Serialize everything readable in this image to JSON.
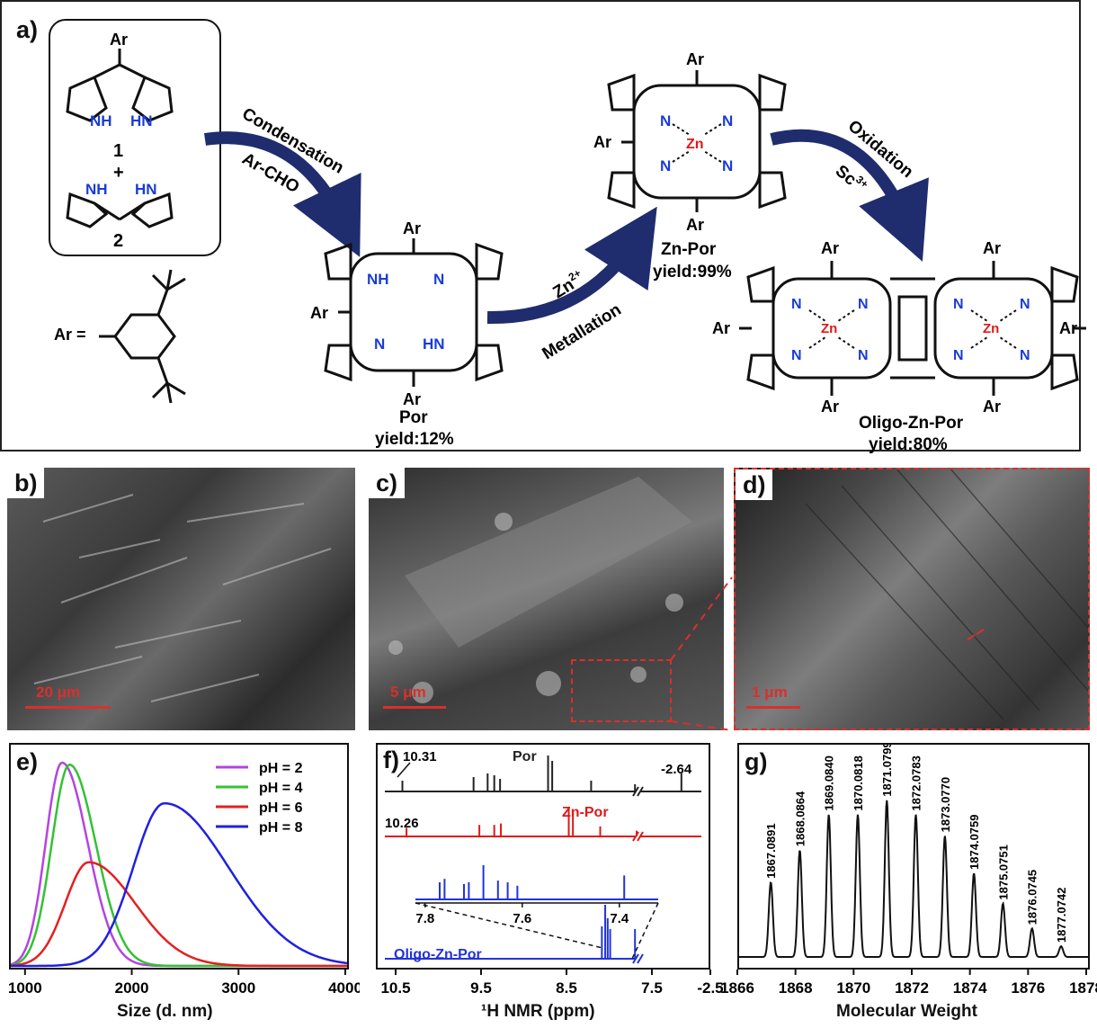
{
  "panels": {
    "a": "a)",
    "b": "b)",
    "c": "c)",
    "d": "d)",
    "e": "e)",
    "f": "f)",
    "g": "g)"
  },
  "scheme": {
    "ar": "Ar",
    "ar_def": "Ar =",
    "compound1": "1",
    "plus": "+",
    "compound2": "2",
    "nh": "NH",
    "hn": "HN",
    "n": "N",
    "zn": "Zn",
    "step1_top": "Condensation",
    "step1_bottom": "Ar-CHO",
    "step2_top": "Zn",
    "step2_top_sup": "2+",
    "step2_bottom": "Metallation",
    "step3_top": "Oxidation",
    "step3_bottom": "Sc",
    "step3_bottom_sup": "3+",
    "por_name": "Por",
    "por_yield": "yield:12%",
    "znpor_name": "Zn-Por",
    "znpor_yield": "yield:99%",
    "oligo_name": "Oligo-Zn-Por",
    "oligo_yield": "yield:80%",
    "arrow_color": "#1f2d6e"
  },
  "sem": {
    "b_scale": "20 μm",
    "c_scale": "5 μm",
    "d_scale": "1 μm"
  },
  "chart_data": [
    {
      "panel": "e",
      "type": "line",
      "xlabel": "Size (d. nm)",
      "ylabel": "",
      "xlim": [
        850,
        4000
      ],
      "xticks": [
        1000,
        2000,
        3000,
        4000
      ],
      "legend_position": "top-right",
      "series": [
        {
          "name": "pH = 2",
          "color": "#b444e0",
          "peak_x": 1330,
          "peak_y": 1.0,
          "left_width": 230,
          "right_width": 360
        },
        {
          "name": "pH = 4",
          "color": "#33c233",
          "peak_x": 1400,
          "peak_y": 0.99,
          "left_width": 250,
          "right_width": 370
        },
        {
          "name": "pH = 6",
          "color": "#e32020",
          "peak_x": 1580,
          "peak_y": 0.51,
          "left_width": 330,
          "right_width": 650
        },
        {
          "name": "pH = 8",
          "color": "#2020e0",
          "peak_x": 2290,
          "peak_y": 0.8,
          "left_width": 440,
          "right_width": 900
        }
      ]
    },
    {
      "panel": "f",
      "type": "line",
      "xlabel": "¹H NMR (ppm)",
      "xticks": [
        "10.5",
        "9.5",
        "8.5",
        "7.5",
        "-2.5"
      ],
      "inset_xticks": [
        "7.8",
        "7.6",
        "7.4"
      ],
      "series": [
        {
          "name": "Por",
          "color": "#222222",
          "annotations": [
            "10.31",
            "-2.64"
          ],
          "peaks": [
            [
              10.31,
              0.3
            ],
            [
              9.45,
              0.4
            ],
            [
              9.28,
              0.5
            ],
            [
              9.2,
              0.45
            ],
            [
              9.13,
              0.35
            ],
            [
              8.55,
              1.0
            ],
            [
              8.5,
              0.85
            ],
            [
              8.03,
              0.3
            ],
            [
              7.5,
              0.2
            ],
            [
              -2.64,
              0.5
            ]
          ]
        },
        {
          "name": "Zn-Por",
          "color": "#e01818",
          "annotations": [
            "10.26"
          ],
          "peaks": [
            [
              10.26,
              0.3
            ],
            [
              9.38,
              0.4
            ],
            [
              9.2,
              0.4
            ],
            [
              9.12,
              0.45
            ],
            [
              8.3,
              1.0
            ],
            [
              8.25,
              0.9
            ],
            [
              7.92,
              0.35
            ],
            [
              7.48,
              0.2
            ]
          ]
        },
        {
          "name": "Oligo-Zn-Por",
          "color": "#2233dd",
          "peaks": [
            [
              7.9,
              0.6
            ],
            [
              7.86,
              1.0
            ],
            [
              7.83,
              0.75
            ],
            [
              7.8,
              0.55
            ],
            [
              7.5,
              0.55
            ]
          ]
        }
      ]
    },
    {
      "panel": "g",
      "type": "line",
      "xlabel": "Molecular Weight",
      "xlim": [
        1866,
        1878
      ],
      "xticks": [
        1866,
        1868,
        1870,
        1872,
        1874,
        1876,
        1878
      ],
      "peaks": [
        {
          "x": 1867.0891,
          "y": 0.42,
          "label": "1867.0891"
        },
        {
          "x": 1868.0864,
          "y": 0.6,
          "label": "1868.0864"
        },
        {
          "x": 1869.084,
          "y": 0.8,
          "label": "1869.0840"
        },
        {
          "x": 1870.0818,
          "y": 0.8,
          "label": "1870.0818"
        },
        {
          "x": 1871.0799,
          "y": 0.88,
          "label": "1871.0799"
        },
        {
          "x": 1872.0783,
          "y": 0.8,
          "label": "1872.0783"
        },
        {
          "x": 1873.077,
          "y": 0.68,
          "label": "1873.0770"
        },
        {
          "x": 1874.0759,
          "y": 0.47,
          "label": "1874.0759"
        },
        {
          "x": 1875.0751,
          "y": 0.3,
          "label": "1875.0751"
        },
        {
          "x": 1876.0745,
          "y": 0.16,
          "label": "1876.0745"
        },
        {
          "x": 1877.0742,
          "y": 0.06,
          "label": "1877.0742"
        }
      ]
    }
  ]
}
